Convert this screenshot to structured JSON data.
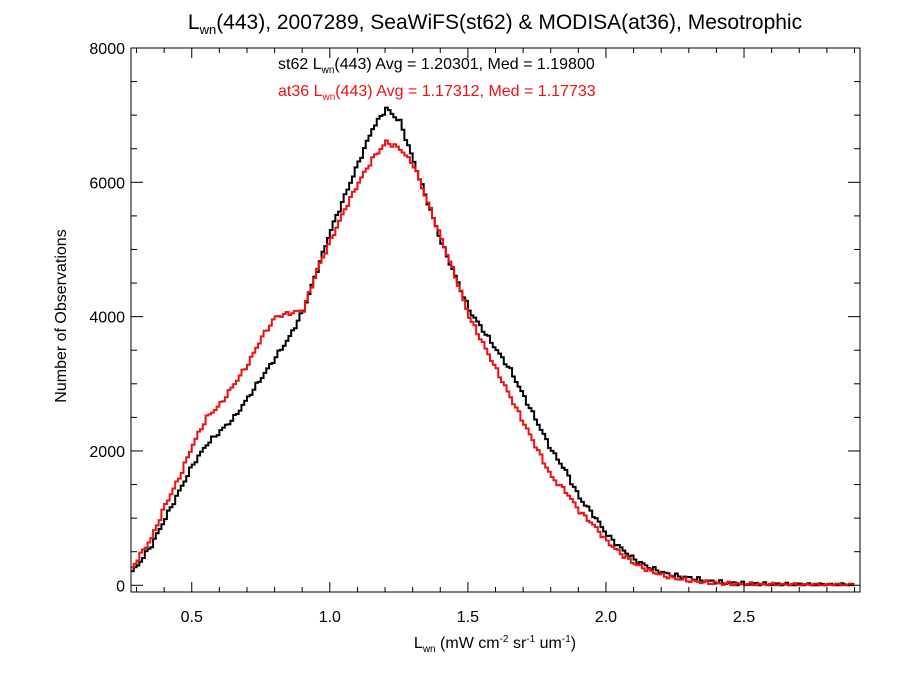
{
  "chart_data": {
    "type": "line",
    "title": {
      "base": "L",
      "sub": "wn",
      "rest": "(443), 2007289, SeaWiFS(st62) & MODISA(at36), Mesotrophic"
    },
    "ylabel": "Number of Observations",
    "xlabel": {
      "base": "L",
      "sub": "wn",
      "rest1": " (mW cm",
      "sup1": "-2",
      "rest2": " sr",
      "sup2": "-1",
      "rest3": " um",
      "sup3": "-1",
      "rest4": ")"
    },
    "xlim": [
      0.28,
      2.92
    ],
    "ylim": [
      -100,
      8000
    ],
    "x_ticks": [
      0.5,
      1.0,
      1.5,
      2.0,
      2.5
    ],
    "x_tick_labels": [
      "0.5",
      "1.0",
      "1.5",
      "2.0",
      "2.5"
    ],
    "y_ticks": [
      0,
      2000,
      4000,
      6000,
      8000
    ],
    "y_tick_labels": [
      "0",
      "2000",
      "4000",
      "6000",
      "8000"
    ],
    "grid": false,
    "annotations": [
      {
        "pre": "st62 L",
        "sub": "wn",
        "post": "(443) Avg = 1.20301, Med = 1.19800",
        "color": "#000000"
      },
      {
        "pre": "at36 L",
        "sub": "wn",
        "post": "(443) Avg = 1.17312, Med = 1.17733",
        "color": "#ee1111"
      }
    ],
    "series": [
      {
        "color": "#000000",
        "x": [
          0.28,
          0.3,
          0.35,
          0.4,
          0.45,
          0.5,
          0.55,
          0.6,
          0.65,
          0.7,
          0.75,
          0.8,
          0.85,
          0.9,
          0.95,
          1.0,
          1.05,
          1.1,
          1.15,
          1.2,
          1.25,
          1.3,
          1.35,
          1.4,
          1.45,
          1.5,
          1.55,
          1.6,
          1.65,
          1.7,
          1.75,
          1.8,
          1.85,
          1.9,
          1.95,
          2.0,
          2.05,
          2.1,
          2.15,
          2.2,
          2.25,
          2.3,
          2.35,
          2.4,
          2.45,
          2.5,
          2.6,
          2.7,
          2.8,
          2.9
        ],
        "values": [
          200,
          300,
          600,
          1000,
          1400,
          1800,
          2100,
          2300,
          2500,
          2800,
          3100,
          3400,
          3700,
          4100,
          4700,
          5300,
          5800,
          6300,
          6800,
          7100,
          6900,
          6300,
          5700,
          5100,
          4600,
          4100,
          3800,
          3500,
          3200,
          2800,
          2400,
          2000,
          1700,
          1300,
          1050,
          750,
          550,
          380,
          270,
          190,
          140,
          110,
          70,
          45,
          30,
          20,
          12,
          8,
          5,
          2
        ]
      },
      {
        "color": "#ee1111",
        "x": [
          0.28,
          0.3,
          0.35,
          0.4,
          0.45,
          0.5,
          0.55,
          0.6,
          0.65,
          0.7,
          0.75,
          0.8,
          0.85,
          0.9,
          0.95,
          1.0,
          1.05,
          1.1,
          1.15,
          1.2,
          1.25,
          1.3,
          1.35,
          1.4,
          1.45,
          1.5,
          1.55,
          1.6,
          1.65,
          1.7,
          1.75,
          1.8,
          1.85,
          1.9,
          1.95,
          2.0,
          2.05,
          2.1,
          2.15,
          2.2,
          2.25,
          2.3,
          2.35,
          2.4,
          2.45,
          2.5,
          2.6,
          2.7,
          2.8,
          2.9
        ],
        "values": [
          250,
          400,
          700,
          1200,
          1600,
          2100,
          2500,
          2700,
          3000,
          3300,
          3700,
          4000,
          4050,
          4100,
          4700,
          5150,
          5600,
          6000,
          6350,
          6600,
          6500,
          6250,
          5700,
          5150,
          4600,
          4000,
          3600,
          3200,
          2800,
          2400,
          2000,
          1600,
          1400,
          1100,
          900,
          650,
          470,
          320,
          220,
          150,
          100,
          70,
          45,
          30,
          20,
          14,
          9,
          6,
          4,
          2
        ]
      }
    ]
  }
}
